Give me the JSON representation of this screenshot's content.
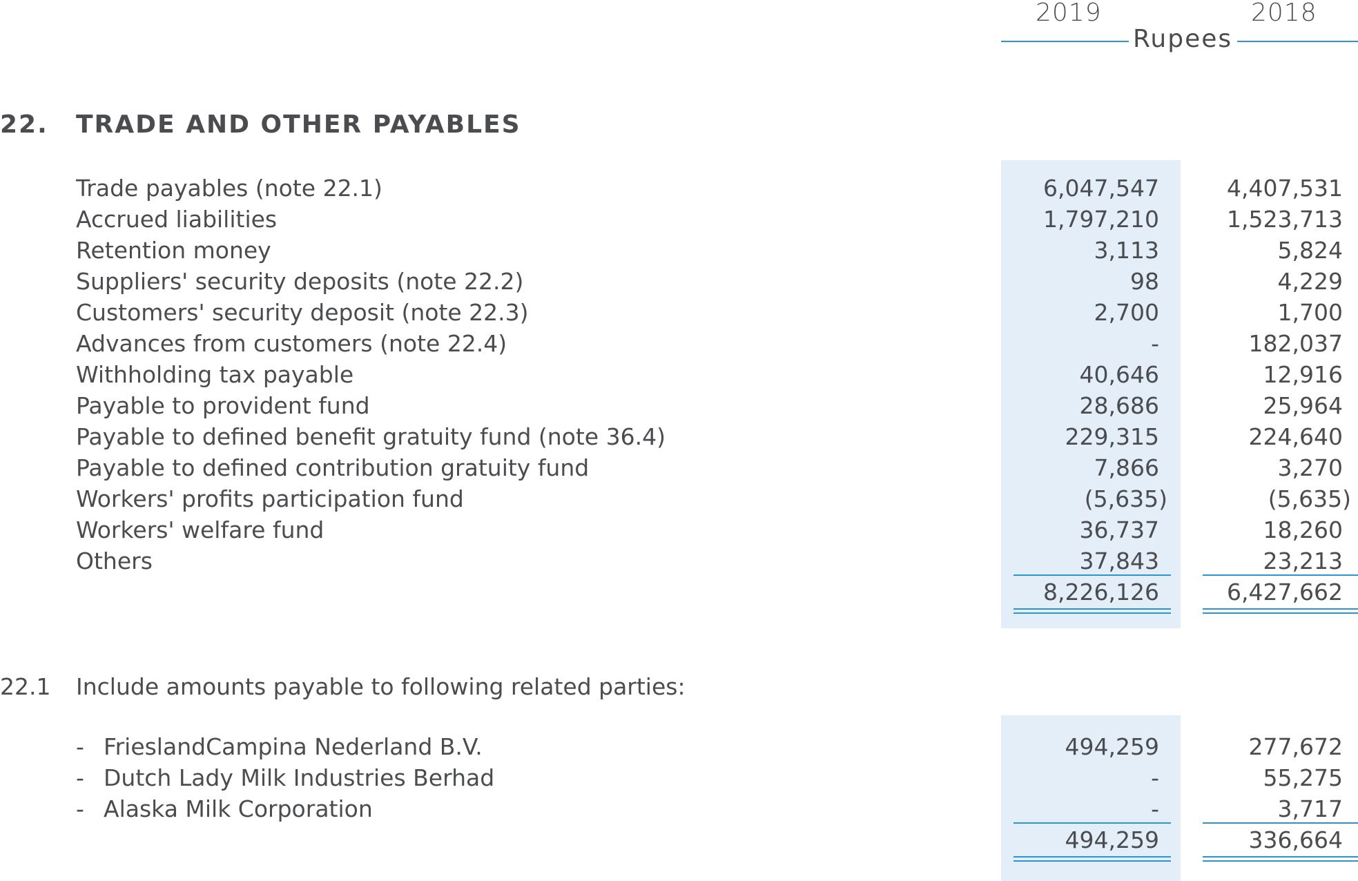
{
  "header": {
    "year_current": "2019",
    "year_prior": "2018",
    "currency": "Rupees"
  },
  "section": {
    "number": "22.",
    "title": "TRADE AND OTHER PAYABLES"
  },
  "payables": {
    "rows": [
      {
        "label": "Trade payables (note 22.1)",
        "y2019": "6,047,547",
        "y2018": "4,407,531"
      },
      {
        "label": "Accrued liabilities",
        "y2019": "1,797,210",
        "y2018": "1,523,713"
      },
      {
        "label": "Retention money",
        "y2019": "3,113",
        "y2018": "5,824"
      },
      {
        "label": "Suppliers' security deposits (note 22.2)",
        "y2019": "98",
        "y2018": "4,229"
      },
      {
        "label": "Customers' security deposit (note 22.3)",
        "y2019": "2,700",
        "y2018": "1,700"
      },
      {
        "label": "Advances from customers (note 22.4)",
        "y2019": "-",
        "y2018": "182,037"
      },
      {
        "label": "Withholding tax payable",
        "y2019": "40,646",
        "y2018": "12,916"
      },
      {
        "label": "Payable to provident fund",
        "y2019": "28,686",
        "y2018": "25,964"
      },
      {
        "label": "Payable to defined benefit gratuity fund (note 36.4)",
        "y2019": "229,315",
        "y2018": "224,640"
      },
      {
        "label": "Payable to defined contribution gratuity fund",
        "y2019": "7,866",
        "y2018": "3,270"
      },
      {
        "label": "Workers' profits participation fund",
        "y2019": "(5,635)",
        "y2018": "(5,635)"
      },
      {
        "label": "Workers' welfare fund",
        "y2019": "36,737",
        "y2018": "18,260"
      },
      {
        "label": "Others",
        "y2019": "37,843",
        "y2018": "23,213"
      }
    ],
    "total": {
      "y2019": "8,226,126",
      "y2018": "6,427,662"
    }
  },
  "note_22_1": {
    "number": "22.1",
    "text": "Include amounts payable to following related parties:",
    "bullet": "-",
    "rows": [
      {
        "label": "FrieslandCampina Nederland B.V.",
        "y2019": "494,259",
        "y2018": "277,672"
      },
      {
        "label": "Dutch Lady Milk Industries Berhad",
        "y2019": "-",
        "y2018": "55,275"
      },
      {
        "label": "Alaska Milk Corporation",
        "y2019": "-",
        "y2018": "3,717"
      }
    ],
    "total": {
      "y2019": "494,259",
      "y2018": "336,664"
    }
  },
  "colors": {
    "text": "#4a4c50",
    "rule": "#2b95cf",
    "shade": "#e4eef8"
  }
}
